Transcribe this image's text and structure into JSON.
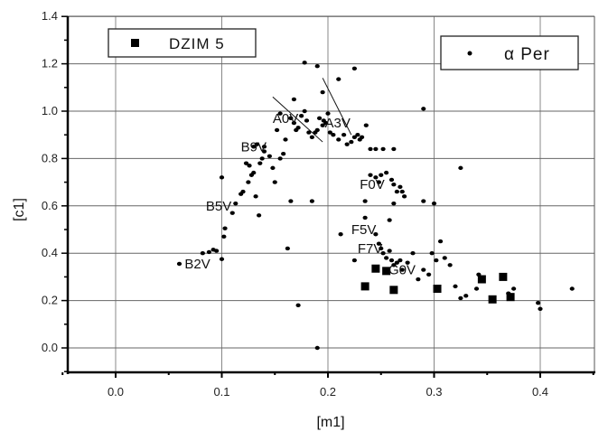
{
  "chart_data": {
    "type": "scatter",
    "title": "",
    "xlabel": "[m1]",
    "ylabel": "[c1]",
    "xlim": [
      -0.05,
      0.45
    ],
    "ylim": [
      -0.1,
      1.4
    ],
    "grid": true,
    "x_ticks": [
      "0.0",
      "0.1",
      "0.2",
      "0.3",
      "0.4"
    ],
    "y_ticks": [
      "0.0",
      "0.2",
      "0.4",
      "0.6",
      "0.8",
      "1.0",
      "1.2",
      "1.4"
    ],
    "legend": [
      {
        "label": "DZIM 5",
        "marker": "square",
        "position": "upper-left"
      },
      {
        "label": "α Per",
        "marker": "dot",
        "position": "upper-right"
      }
    ],
    "series": [
      {
        "name": "DZIM 5",
        "marker": "square",
        "points": [
          [
            0.235,
            0.26
          ],
          [
            0.245,
            0.335
          ],
          [
            0.255,
            0.325
          ],
          [
            0.262,
            0.245
          ],
          [
            0.303,
            0.25
          ],
          [
            0.345,
            0.29
          ],
          [
            0.355,
            0.205
          ],
          [
            0.365,
            0.3
          ],
          [
            0.372,
            0.215
          ]
        ]
      },
      {
        "name": "α Per",
        "marker": "dot",
        "points": [
          [
            0.06,
            0.355
          ],
          [
            0.082,
            0.4
          ],
          [
            0.088,
            0.405
          ],
          [
            0.092,
            0.415
          ],
          [
            0.095,
            0.41
          ],
          [
            0.1,
            0.375
          ],
          [
            0.102,
            0.47
          ],
          [
            0.103,
            0.505
          ],
          [
            0.1,
            0.72
          ],
          [
            0.11,
            0.57
          ],
          [
            0.113,
            0.61
          ],
          [
            0.118,
            0.65
          ],
          [
            0.12,
            0.66
          ],
          [
            0.125,
            0.7
          ],
          [
            0.128,
            0.73
          ],
          [
            0.13,
            0.74
          ],
          [
            0.123,
            0.78
          ],
          [
            0.126,
            0.77
          ],
          [
            0.132,
            0.64
          ],
          [
            0.135,
            0.56
          ],
          [
            0.136,
            0.78
          ],
          [
            0.138,
            0.8
          ],
          [
            0.14,
            0.83
          ],
          [
            0.13,
            0.85
          ],
          [
            0.133,
            0.86
          ],
          [
            0.14,
            0.85
          ],
          [
            0.145,
            0.81
          ],
          [
            0.148,
            0.76
          ],
          [
            0.15,
            0.7
          ],
          [
            0.152,
            0.92
          ],
          [
            0.155,
            0.8
          ],
          [
            0.158,
            0.82
          ],
          [
            0.16,
            0.88
          ],
          [
            0.162,
            0.42
          ],
          [
            0.165,
            0.62
          ],
          [
            0.168,
            0.95
          ],
          [
            0.17,
            0.92
          ],
          [
            0.172,
            0.93
          ],
          [
            0.175,
            0.98
          ],
          [
            0.178,
            1.0
          ],
          [
            0.18,
            0.96
          ],
          [
            0.182,
            0.91
          ],
          [
            0.185,
            0.89
          ],
          [
            0.188,
            0.91
          ],
          [
            0.19,
            0.92
          ],
          [
            0.192,
            0.97
          ],
          [
            0.195,
            0.94
          ],
          [
            0.196,
            0.96
          ],
          [
            0.198,
            0.95
          ],
          [
            0.2,
            0.99
          ],
          [
            0.202,
            0.91
          ],
          [
            0.205,
            0.9
          ],
          [
            0.21,
            0.88
          ],
          [
            0.215,
            0.9
          ],
          [
            0.218,
            0.86
          ],
          [
            0.222,
            0.87
          ],
          [
            0.225,
            0.89
          ],
          [
            0.228,
            0.9
          ],
          [
            0.23,
            0.88
          ],
          [
            0.232,
            0.89
          ],
          [
            0.236,
            0.94
          ],
          [
            0.24,
            0.84
          ],
          [
            0.245,
            0.84
          ],
          [
            0.252,
            0.84
          ],
          [
            0.262,
            0.84
          ],
          [
            0.168,
            1.05
          ],
          [
            0.178,
            1.205
          ],
          [
            0.19,
            1.19
          ],
          [
            0.21,
            1.135
          ],
          [
            0.225,
            1.18
          ],
          [
            0.195,
            1.08
          ],
          [
            0.172,
            0.18
          ],
          [
            0.19,
            0.0
          ],
          [
            0.212,
            0.48
          ],
          [
            0.225,
            0.37
          ],
          [
            0.235,
            0.62
          ],
          [
            0.24,
            0.73
          ],
          [
            0.245,
            0.72
          ],
          [
            0.248,
            0.7
          ],
          [
            0.25,
            0.73
          ],
          [
            0.255,
            0.74
          ],
          [
            0.26,
            0.71
          ],
          [
            0.262,
            0.69
          ],
          [
            0.265,
            0.66
          ],
          [
            0.268,
            0.68
          ],
          [
            0.27,
            0.66
          ],
          [
            0.272,
            0.64
          ],
          [
            0.262,
            0.61
          ],
          [
            0.258,
            0.54
          ],
          [
            0.235,
            0.55
          ],
          [
            0.245,
            0.48
          ],
          [
            0.248,
            0.44
          ],
          [
            0.25,
            0.42
          ],
          [
            0.252,
            0.4
          ],
          [
            0.255,
            0.38
          ],
          [
            0.258,
            0.41
          ],
          [
            0.26,
            0.37
          ],
          [
            0.262,
            0.35
          ],
          [
            0.265,
            0.36
          ],
          [
            0.268,
            0.37
          ],
          [
            0.27,
            0.33
          ],
          [
            0.275,
            0.36
          ],
          [
            0.28,
            0.4
          ],
          [
            0.285,
            0.29
          ],
          [
            0.29,
            0.33
          ],
          [
            0.295,
            0.31
          ],
          [
            0.298,
            0.4
          ],
          [
            0.302,
            0.37
          ],
          [
            0.306,
            0.45
          ],
          [
            0.31,
            0.38
          ],
          [
            0.315,
            0.35
          ],
          [
            0.32,
            0.26
          ],
          [
            0.325,
            0.21
          ],
          [
            0.33,
            0.22
          ],
          [
            0.34,
            0.25
          ],
          [
            0.342,
            0.31
          ],
          [
            0.37,
            0.23
          ],
          [
            0.375,
            0.25
          ],
          [
            0.398,
            0.19
          ],
          [
            0.4,
            0.165
          ],
          [
            0.43,
            0.25
          ],
          [
            0.29,
            1.01
          ],
          [
            0.325,
            0.76
          ],
          [
            0.3,
            0.61
          ],
          [
            0.29,
            0.62
          ],
          [
            0.185,
            0.62
          ],
          [
            0.165,
            0.97
          ],
          [
            0.155,
            0.99
          ]
        ]
      }
    ],
    "annotations": [
      {
        "text": "B2V",
        "x": 0.065,
        "y": 0.355
      },
      {
        "text": "B5V",
        "x": 0.085,
        "y": 0.6
      },
      {
        "text": "B9V",
        "x": 0.118,
        "y": 0.85
      },
      {
        "text": "A0V",
        "x": 0.148,
        "y": 0.97
      },
      {
        "text": "A3V",
        "x": 0.197,
        "y": 0.95
      },
      {
        "text": "F0V",
        "x": 0.23,
        "y": 0.69
      },
      {
        "text": "F5V",
        "x": 0.222,
        "y": 0.5
      },
      {
        "text": "F7V",
        "x": 0.228,
        "y": 0.42
      },
      {
        "text": "G0V",
        "x": 0.257,
        "y": 0.33
      }
    ],
    "lines": [
      {
        "from": [
          0.148,
          1.06
        ],
        "to": [
          0.195,
          0.87
        ]
      },
      {
        "from": [
          0.195,
          1.14
        ],
        "to": [
          0.222,
          0.9
        ]
      }
    ]
  }
}
